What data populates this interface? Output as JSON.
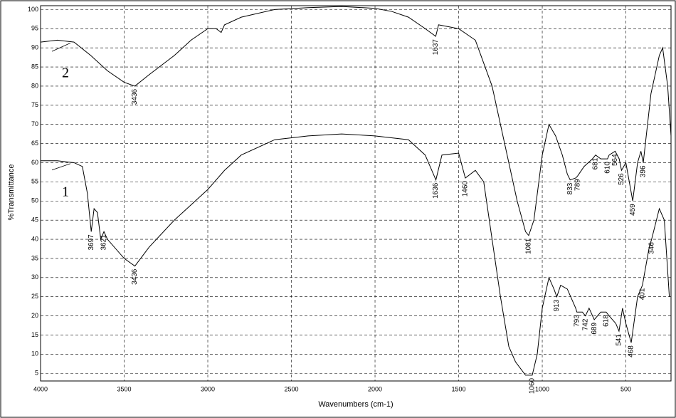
{
  "chart_data": {
    "type": "line",
    "xlabel": "Wavenumbers (cm-1)",
    "ylabel": "%Transmittance",
    "xlim": [
      4000,
      230
    ],
    "ylim": [
      3,
      101
    ],
    "xticks": [
      4000,
      3500,
      3000,
      2500,
      2000,
      1500,
      1000,
      500
    ],
    "yticks": [
      5,
      10,
      15,
      20,
      25,
      30,
      35,
      40,
      45,
      50,
      55,
      60,
      65,
      70,
      75,
      80,
      85,
      90,
      95,
      100
    ],
    "grid": true,
    "series": [
      {
        "name": "1",
        "color": "#000000",
        "x": [
          4000,
          3900,
          3800,
          3750,
          3720,
          3697,
          3680,
          3660,
          3640,
          3621,
          3600,
          3500,
          3436,
          3350,
          3200,
          3000,
          2900,
          2800,
          2600,
          2400,
          2200,
          2000,
          1800,
          1700,
          1636,
          1600,
          1500,
          1460,
          1400,
          1350,
          1300,
          1250,
          1200,
          1160,
          1100,
          1060,
          1030,
          1000,
          960,
          930,
          913,
          890,
          850,
          800,
          793,
          760,
          742,
          720,
          689,
          650,
          618,
          600,
          560,
          541,
          520,
          500,
          468,
          430,
          401,
          360,
          346,
          300,
          270,
          240
        ],
        "values": [
          60.5,
          60.5,
          60,
          59,
          52,
          42,
          48,
          47,
          40,
          42,
          40,
          35,
          33,
          38,
          45,
          53,
          58,
          62,
          66,
          67,
          67.5,
          67,
          66,
          62,
          55.5,
          62,
          62.5,
          56,
          58,
          55,
          40,
          25,
          12,
          8,
          4.5,
          4.5,
          10,
          22,
          30,
          27,
          25,
          28,
          27,
          22,
          21,
          21,
          20,
          22,
          19,
          21,
          21,
          20,
          18,
          16,
          22,
          18,
          13,
          25,
          28,
          38,
          40,
          48,
          45,
          25
        ],
        "peaks": [
          3697,
          3621,
          3436,
          1636,
          1460,
          1060,
          913,
          793,
          742,
          689,
          618,
          541,
          468,
          401,
          346
        ]
      },
      {
        "name": "2",
        "color": "#000000",
        "x": [
          4000,
          3900,
          3800,
          3700,
          3600,
          3500,
          3436,
          3350,
          3200,
          3100,
          3000,
          2950,
          2920,
          2900,
          2800,
          2600,
          2400,
          2200,
          2000,
          1900,
          1800,
          1700,
          1637,
          1620,
          1500,
          1400,
          1300,
          1200,
          1150,
          1100,
          1081,
          1050,
          1000,
          960,
          920,
          880,
          850,
          833,
          800,
          789,
          750,
          700,
          681,
          650,
          610,
          600,
          564,
          540,
          526,
          500,
          459,
          430,
          410,
          396,
          350,
          300,
          280,
          250,
          230
        ],
        "values": [
          91.5,
          92,
          91.5,
          88,
          84,
          81,
          80,
          83,
          88,
          92,
          95,
          95,
          94,
          96,
          98,
          100,
          100.5,
          100.8,
          100.3,
          99.5,
          98,
          95,
          93,
          96,
          95,
          92,
          80,
          60,
          50,
          42,
          41,
          45,
          62,
          70,
          67,
          62,
          57,
          55.5,
          56,
          56.5,
          59,
          61,
          62,
          61,
          61,
          62,
          63,
          61,
          58,
          60,
          50,
          60,
          63,
          60,
          78,
          88,
          90,
          80,
          67
        ],
        "peaks": [
          3436,
          1637,
          1081,
          833,
          789,
          681,
          610,
          564,
          526,
          459,
          396
        ]
      }
    ]
  }
}
